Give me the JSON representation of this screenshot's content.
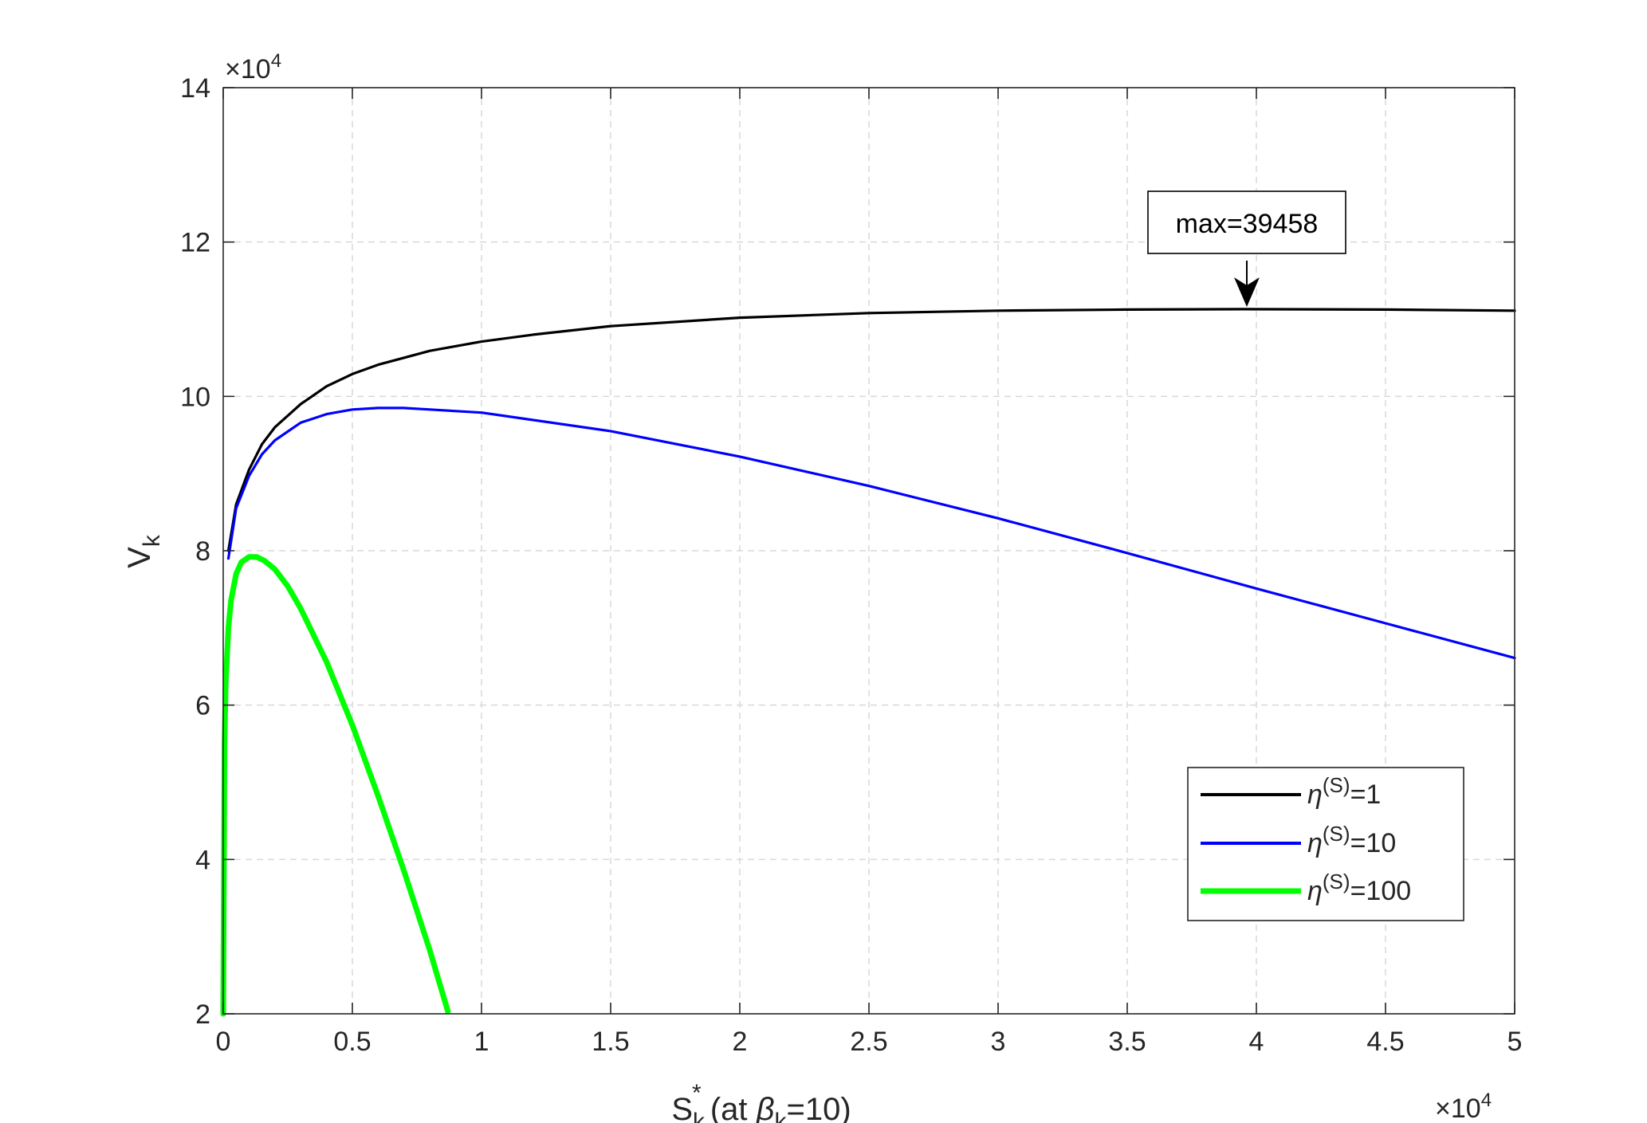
{
  "chart_data": {
    "type": "line",
    "xlabel": {
      "base": "S",
      "sub": "k",
      "sup": "*",
      "rest_open": " (at ",
      "beta": "β",
      "beta_sub": "k",
      "rest_close": "=10)"
    },
    "ylabel": {
      "base": "V",
      "sub": "k"
    },
    "x_exponent": {
      "times": "×10",
      "power": "4"
    },
    "y_exponent": {
      "times": "×10",
      "power": "4"
    },
    "xlim": [
      0,
      50000
    ],
    "ylim": [
      20000,
      140000
    ],
    "x_ticks": [
      0,
      5000,
      10000,
      15000,
      20000,
      25000,
      30000,
      35000,
      40000,
      45000,
      50000
    ],
    "x_tick_labels": [
      "0",
      "0.5",
      "1",
      "1.5",
      "2",
      "2.5",
      "3",
      "3.5",
      "4",
      "4.5",
      "5"
    ],
    "y_ticks": [
      20000,
      40000,
      60000,
      80000,
      100000,
      120000,
      140000
    ],
    "y_tick_labels": [
      "2",
      "4",
      "6",
      "8",
      "10",
      "12",
      "14"
    ],
    "grid": true,
    "legend_position": "bottom-right",
    "series": [
      {
        "name": "η(S)=1",
        "legend": {
          "eta": "η",
          "sup": "(S)",
          "val": "=1"
        },
        "color": "#000000",
        "x": [
          200,
          500,
          1000,
          1500,
          2000,
          3000,
          4000,
          5000,
          6000,
          8000,
          10000,
          12000,
          15000,
          20000,
          25000,
          30000,
          35000,
          39458,
          45000,
          50000
        ],
        "y": [
          80000,
          86000,
          90500,
          93800,
          96000,
          99000,
          101300,
          102900,
          104100,
          105900,
          107100,
          108000,
          109100,
          110200,
          110800,
          111100,
          111250,
          111300,
          111250,
          111100
        ]
      },
      {
        "name": "η(S)=10",
        "legend": {
          "eta": "η",
          "sup": "(S)",
          "val": "=10"
        },
        "color": "#0000ff",
        "x": [
          200,
          500,
          1000,
          1500,
          2000,
          3000,
          4000,
          5000,
          6000,
          7000,
          8000,
          10000,
          15000,
          20000,
          25000,
          30000,
          35000,
          40000,
          45000,
          50000
        ],
        "y": [
          79000,
          85500,
          89700,
          92500,
          94300,
          96600,
          97700,
          98300,
          98500,
          98500,
          98300,
          97900,
          95500,
          92200,
          88400,
          84200,
          79700,
          75100,
          70600,
          66100
        ]
      },
      {
        "name": "η(S)=100",
        "legend": {
          "eta": "η",
          "sup": "(S)",
          "val": "=100"
        },
        "color": "#00ff00",
        "x": [
          0,
          50,
          100,
          200,
          300,
          500,
          700,
          1000,
          1300,
          1600,
          2000,
          2500,
          3000,
          4000,
          5000,
          6000,
          7000,
          8000,
          8700
        ],
        "y": [
          20000,
          55000,
          63000,
          70000,
          73500,
          77000,
          78500,
          79200,
          79200,
          78700,
          77600,
          75400,
          72500,
          65600,
          57400,
          48200,
          38500,
          28200,
          20300
        ]
      }
    ],
    "annotations": [
      {
        "text": "max=39458",
        "x": 39458,
        "y": 111300,
        "arrow": true
      }
    ]
  }
}
